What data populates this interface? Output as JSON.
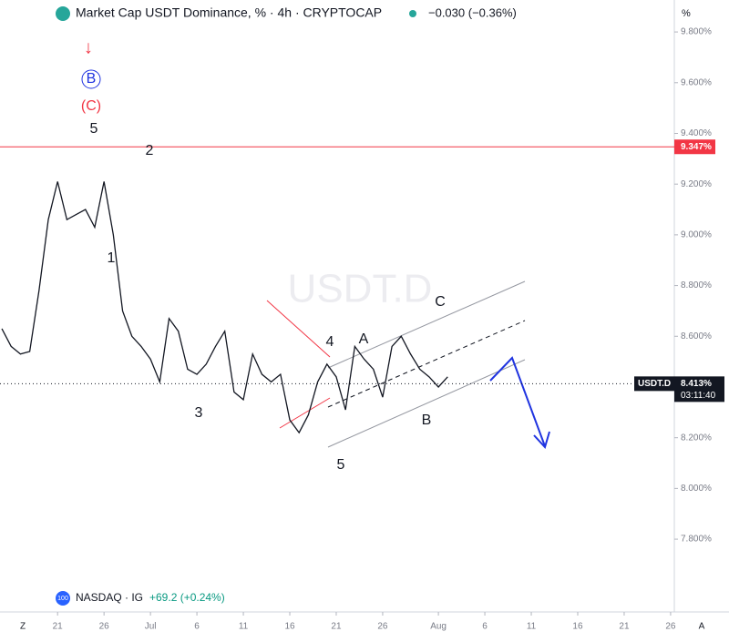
{
  "chart_data": {
    "type": "line",
    "title": "Market Cap USDT Dominance, % · 4h · CRYPTOCAP",
    "change": "−0.030 (−0.36%)",
    "watermark": "USDT.D",
    "y_unit": "%",
    "grid": false,
    "color": "#131722",
    "x": [
      15,
      16,
      17,
      18,
      19,
      20,
      21,
      22,
      23,
      24,
      25,
      26,
      27,
      28,
      29,
      30,
      31,
      32,
      33,
      34,
      35,
      36,
      37,
      38,
      39,
      40,
      41,
      42,
      43,
      44,
      45,
      46,
      47,
      48,
      49,
      50,
      51,
      52,
      53,
      54,
      55,
      56,
      57,
      58,
      59,
      60,
      61,
      62,
      63
    ],
    "values": [
      8.63,
      8.56,
      8.53,
      8.54,
      8.78,
      9.06,
      9.21,
      9.06,
      9.08,
      9.1,
      9.03,
      9.21,
      9.0,
      8.7,
      8.6,
      8.56,
      8.51,
      8.42,
      8.67,
      8.62,
      8.47,
      8.45,
      8.49,
      8.56,
      8.62,
      8.38,
      8.35,
      8.53,
      8.45,
      8.42,
      8.45,
      8.27,
      8.22,
      8.29,
      8.42,
      8.49,
      8.44,
      8.31,
      8.56,
      8.51,
      8.47,
      8.36,
      8.56,
      8.6,
      8.53,
      8.47,
      8.44,
      8.4,
      8.44
    ],
    "xlim": [
      14.8,
      87.4
    ],
    "ylim": [
      9.926,
      7.513
    ],
    "yticks": [
      {
        "value": 9.8,
        "label": "9.800%"
      },
      {
        "value": 9.6,
        "label": "9.600%"
      },
      {
        "value": 9.4,
        "label": "9.400%"
      },
      {
        "value": 9.2,
        "label": "9.200%"
      },
      {
        "value": 9.0,
        "label": "9.000%"
      },
      {
        "value": 8.8,
        "label": "8.800%"
      },
      {
        "value": 8.6,
        "label": "8.600%"
      },
      {
        "value": 8.4,
        "label": "8.400%"
      },
      {
        "value": 8.2,
        "label": "8.200%"
      },
      {
        "value": 8.0,
        "label": "8.000%"
      },
      {
        "value": 7.8,
        "label": "7.800%"
      }
    ],
    "xticks": [
      {
        "value": 21,
        "label": "21"
      },
      {
        "value": 26,
        "label": "26"
      },
      {
        "value": 31,
        "label": "Jul"
      },
      {
        "value": 36,
        "label": "6"
      },
      {
        "value": 41,
        "label": "11"
      },
      {
        "value": 46,
        "label": "16"
      },
      {
        "value": 51,
        "label": "21"
      },
      {
        "value": 56,
        "label": "26"
      },
      {
        "value": 62,
        "label": "Aug"
      },
      {
        "value": 67,
        "label": "6"
      },
      {
        "value": 72,
        "label": "11"
      },
      {
        "value": 77,
        "label": "16"
      },
      {
        "value": 82,
        "label": "21"
      },
      {
        "value": 87,
        "label": "26"
      }
    ],
    "resistance": {
      "value": 9.347,
      "label": "9.347%"
    },
    "last_price": {
      "value": 8.413,
      "label": "8.413%",
      "symbol": "USDT.D",
      "countdown": "03:11:40"
    },
    "annotations": [
      "B",
      "(C)",
      "5",
      "2",
      "1",
      "3",
      "4",
      "5",
      "A",
      "B",
      "C"
    ],
    "compare": {
      "icon": "100",
      "name": "NASDAQ · IG",
      "change": "+69.2 (+0.24%)"
    },
    "corner_left": "Z",
    "corner_right": "A"
  }
}
